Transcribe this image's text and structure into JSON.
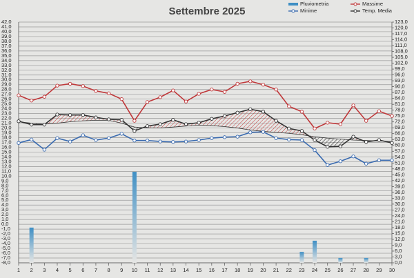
{
  "chart_data": {
    "type": "line",
    "title": "Settembre 2025",
    "x": [
      1,
      2,
      3,
      4,
      5,
      6,
      7,
      8,
      9,
      10,
      11,
      12,
      13,
      14,
      15,
      16,
      17,
      18,
      19,
      20,
      21,
      22,
      23,
      24,
      25,
      26,
      27,
      28,
      29,
      30
    ],
    "xlim": [
      1,
      30
    ],
    "xticks": [
      1,
      2,
      3,
      4,
      5,
      6,
      7,
      8,
      9,
      10,
      11,
      12,
      13,
      14,
      15,
      16,
      17,
      18,
      19,
      20,
      21,
      22,
      23,
      24,
      25,
      26,
      27,
      28,
      29,
      30
    ],
    "ylim": [
      -8,
      42
    ],
    "yticks": [
      {
        "value": -8,
        "label": "-8,0"
      },
      {
        "value": -7,
        "label": "-7,0"
      },
      {
        "value": -6,
        "label": "-6,0"
      },
      {
        "value": -5,
        "label": "-5,0"
      },
      {
        "value": -4,
        "label": "-4,0"
      },
      {
        "value": -3,
        "label": "-3,0"
      },
      {
        "value": -2,
        "label": "-2,0"
      },
      {
        "value": -1,
        "label": "-1,0"
      },
      {
        "value": 0,
        "label": "0,0"
      },
      {
        "value": 1,
        "label": "1,0"
      },
      {
        "value": 2,
        "label": "2,0"
      },
      {
        "value": 3,
        "label": "3,0"
      },
      {
        "value": 4,
        "label": "4,0"
      },
      {
        "value": 5,
        "label": "5,0"
      },
      {
        "value": 6,
        "label": "6,0"
      },
      {
        "value": 7,
        "label": "7,0"
      },
      {
        "value": 8,
        "label": "8,0"
      },
      {
        "value": 9,
        "label": "9,0"
      },
      {
        "value": 10,
        "label": "10,0"
      },
      {
        "value": 11,
        "label": "11,0"
      },
      {
        "value": 12,
        "label": "12,0"
      },
      {
        "value": 13,
        "label": "13,0"
      },
      {
        "value": 14,
        "label": "14,0"
      },
      {
        "value": 15,
        "label": "15,0"
      },
      {
        "value": 16,
        "label": "16,0"
      },
      {
        "value": 17,
        "label": "17,0"
      },
      {
        "value": 18,
        "label": "18,0"
      },
      {
        "value": 19,
        "label": "19,0"
      },
      {
        "value": 20,
        "label": "20,0"
      },
      {
        "value": 21,
        "label": "21,0"
      },
      {
        "value": 22,
        "label": "22,0"
      },
      {
        "value": 23,
        "label": "23,0"
      },
      {
        "value": 24,
        "label": "24,0"
      },
      {
        "value": 25,
        "label": "25,0"
      },
      {
        "value": 26,
        "label": "26,0"
      },
      {
        "value": 27,
        "label": "27,0"
      },
      {
        "value": 28,
        "label": "28,0"
      },
      {
        "value": 29,
        "label": "29,0"
      },
      {
        "value": 30,
        "label": "30,0"
      },
      {
        "value": 31,
        "label": "31,0"
      },
      {
        "value": 32,
        "label": "32,0"
      },
      {
        "value": 33,
        "label": "33,0"
      },
      {
        "value": 34,
        "label": "34,0"
      },
      {
        "value": 35,
        "label": "35,0"
      },
      {
        "value": 36,
        "label": "36,0"
      },
      {
        "value": 37,
        "label": "37,0"
      },
      {
        "value": 38,
        "label": "38,0"
      },
      {
        "value": 39,
        "label": "39,0"
      },
      {
        "value": 40,
        "label": "40,0"
      },
      {
        "value": 41,
        "label": "41,0"
      },
      {
        "value": 42,
        "label": "42,0"
      }
    ],
    "y2lim": [
      0,
      123
    ],
    "y2ticks": [
      {
        "value": 0,
        "label": "0,0"
      },
      {
        "value": 3,
        "label": "3,0"
      },
      {
        "value": 6,
        "label": "6,0"
      },
      {
        "value": 9,
        "label": "9,0"
      },
      {
        "value": 12,
        "label": "12,0"
      },
      {
        "value": 15,
        "label": "15,0"
      },
      {
        "value": 18,
        "label": "18,0"
      },
      {
        "value": 21,
        "label": "21,0"
      },
      {
        "value": 24,
        "label": "24,0"
      },
      {
        "value": 27,
        "label": "27,0"
      },
      {
        "value": 30,
        "label": "30,0"
      },
      {
        "value": 33,
        "label": "33,0"
      },
      {
        "value": 36,
        "label": "36,0"
      },
      {
        "value": 39,
        "label": "39,0"
      },
      {
        "value": 42,
        "label": "42,0"
      },
      {
        "value": 45,
        "label": "45,0"
      },
      {
        "value": 48,
        "label": "48,0"
      },
      {
        "value": 51,
        "label": "51,0"
      },
      {
        "value": 54,
        "label": "54,0"
      },
      {
        "value": 57,
        "label": "57,0"
      },
      {
        "value": 60,
        "label": "60,0"
      },
      {
        "value": 63,
        "label": "63,0"
      },
      {
        "value": 66,
        "label": "66,0"
      },
      {
        "value": 69,
        "label": "69,0"
      },
      {
        "value": 72,
        "label": "72,0"
      },
      {
        "value": 75,
        "label": "75,0"
      },
      {
        "value": 78,
        "label": "78,0"
      },
      {
        "value": 81,
        "label": "81,0"
      },
      {
        "value": 84,
        "label": "84,0"
      },
      {
        "value": 87,
        "label": "87,0"
      },
      {
        "value": 90,
        "label": "90,0"
      },
      {
        "value": 93,
        "label": "93,0"
      },
      {
        "value": 96,
        "label": "96,0"
      },
      {
        "value": 99,
        "label": "99,0"
      },
      {
        "value": 102,
        "label": "102,0"
      },
      {
        "value": 105,
        "label": "105,0"
      },
      {
        "value": 108,
        "label": "108,0"
      },
      {
        "value": 111,
        "label": "111,0"
      },
      {
        "value": 114,
        "label": "114,0"
      },
      {
        "value": 117,
        "label": "117,0"
      },
      {
        "value": 120,
        "label": "120,0"
      },
      {
        "value": 123,
        "label": "123,0"
      }
    ],
    "grid": true,
    "reference": {
      "color": "#333333",
      "values": [
        21.3,
        21.0,
        20.8,
        21.0,
        21.3,
        21.5,
        21.6,
        21.6,
        21.0,
        20.2,
        20.0,
        20.0,
        20.2,
        20.4,
        20.6,
        20.5,
        20.3,
        20.0,
        19.6,
        19.3,
        19.1,
        18.9,
        18.6,
        18.2,
        17.9,
        17.7,
        17.5,
        17.4,
        17.3,
        17.2
      ]
    },
    "series": [
      {
        "name": "Pluviometria",
        "type": "bar",
        "axis": "y2",
        "color": "#3f8fc4",
        "values": [
          0,
          18.0,
          0,
          0,
          0,
          0,
          0,
          0,
          0,
          46.5,
          0,
          0,
          0,
          0,
          0,
          0,
          0,
          0,
          0,
          0,
          0,
          0,
          5.6,
          11.3,
          0,
          2.5,
          0,
          2.5,
          0,
          0
        ]
      },
      {
        "name": "Massime",
        "color": "#c0393b",
        "values": [
          26.8,
          25.7,
          26.5,
          28.8,
          29.2,
          28.7,
          27.7,
          27.2,
          26.0,
          21.5,
          25.4,
          26.4,
          27.8,
          25.5,
          27.1,
          28.0,
          27.5,
          29.2,
          29.7,
          29.0,
          28.0,
          24.5,
          23.4,
          19.9,
          21.1,
          20.8,
          24.7,
          21.5,
          23.5,
          22.5
        ]
      },
      {
        "name": "Minime",
        "color": "#3a6bb0",
        "values": [
          16.9,
          17.6,
          15.5,
          17.9,
          17.2,
          18.5,
          17.5,
          17.9,
          18.8,
          17.4,
          17.4,
          17.2,
          17.1,
          17.2,
          17.5,
          17.9,
          18.1,
          18.2,
          19.1,
          19.2,
          17.9,
          17.6,
          17.5,
          15.4,
          12.3,
          13.1,
          14.1,
          12.6,
          13.3,
          13.3
        ]
      },
      {
        "name": "Temp. Media",
        "color": "#333333",
        "values": [
          21.4,
          20.7,
          20.7,
          22.8,
          22.7,
          22.7,
          22.2,
          21.8,
          21.7,
          19.4,
          20.4,
          20.8,
          21.7,
          20.8,
          21.1,
          21.9,
          22.5,
          23.2,
          23.9,
          23.4,
          21.5,
          19.9,
          19.4,
          17.5,
          16.1,
          16.2,
          18.2,
          17.1,
          17.5,
          16.9
        ]
      }
    ]
  }
}
